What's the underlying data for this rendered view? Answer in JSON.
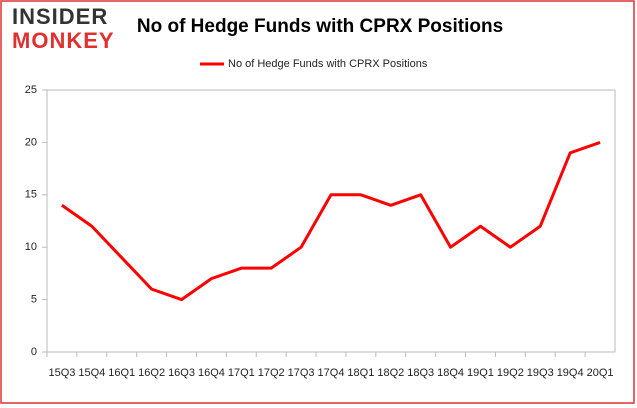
{
  "logo": {
    "top": "INSIDER",
    "bottom": "MONKEY"
  },
  "chart_data": {
    "type": "line",
    "title": "No of Hedge Funds with CPRX Positions",
    "categories": [
      "15Q3",
      "15Q4",
      "16Q1",
      "16Q2",
      "16Q3",
      "16Q4",
      "17Q1",
      "17Q2",
      "17Q3",
      "17Q4",
      "18Q1",
      "18Q2",
      "18Q3",
      "18Q4",
      "19Q1",
      "19Q2",
      "19Q3",
      "19Q4",
      "20Q1"
    ],
    "series": [
      {
        "name": "No of Hedge Funds with CPRX Positions",
        "color": "#ff0000",
        "values": [
          14,
          12,
          9,
          6,
          5,
          7,
          8,
          8,
          10,
          15,
          15,
          14,
          15,
          10,
          12,
          10,
          12,
          19,
          20
        ]
      }
    ],
    "ylim": [
      0,
      25
    ],
    "yticks": [
      0,
      5,
      10,
      15,
      20,
      25
    ],
    "grid": false,
    "legend": "top"
  }
}
